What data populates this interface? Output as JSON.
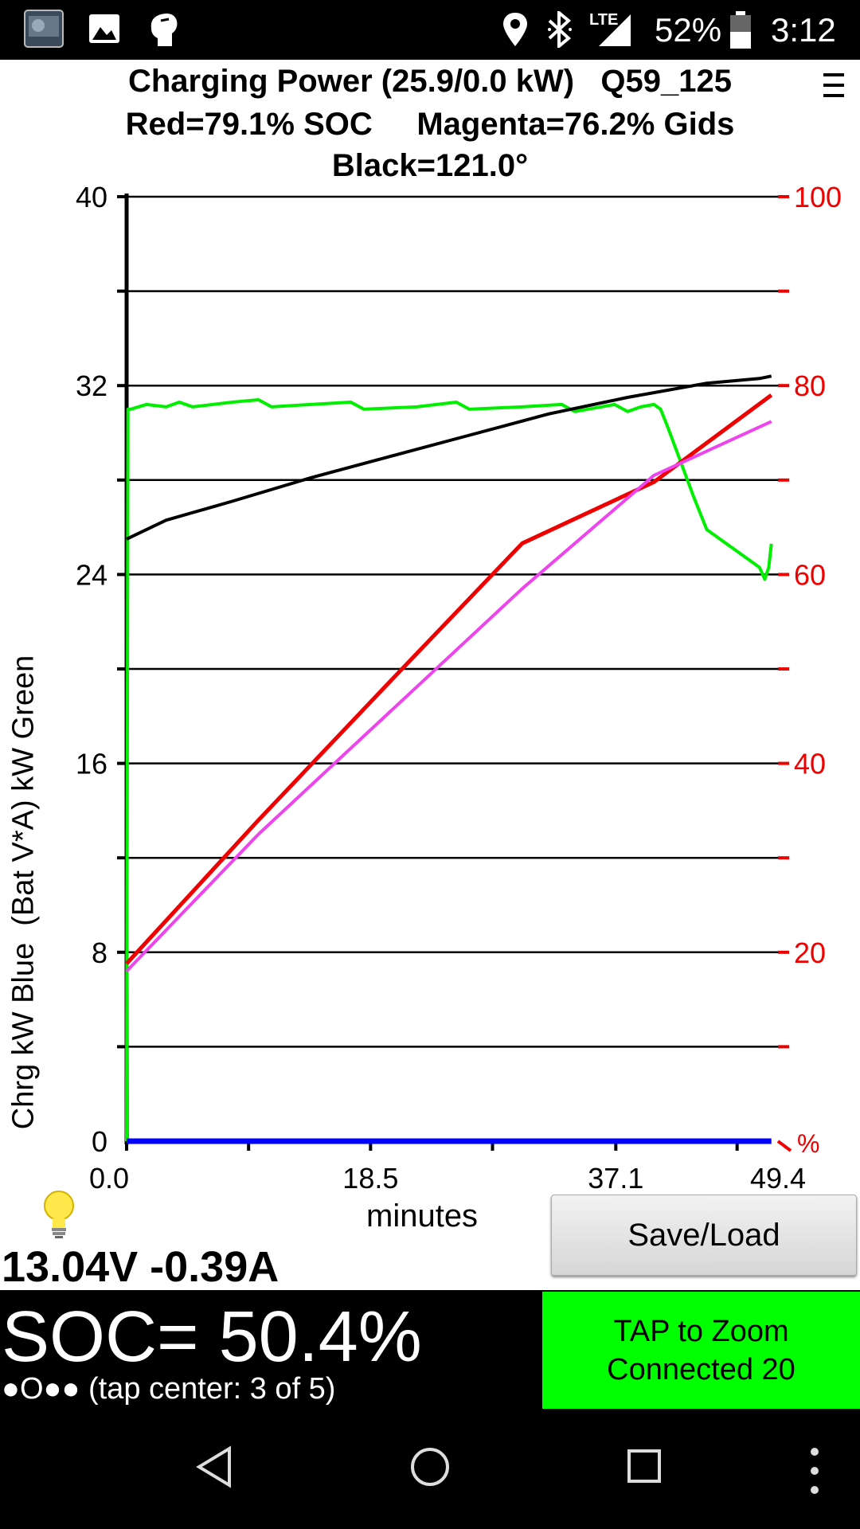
{
  "status_bar": {
    "icons": [
      "app-thumbnail-icon",
      "image-icon",
      "hand-icon",
      "location-icon",
      "bluetooth-icon",
      "lte-signal-icon",
      "battery-icon"
    ],
    "lte": "LTE",
    "battery": "52%",
    "time": "3:12"
  },
  "header": {
    "line1": "Charging Power (25.9/0.0 kW)   Q59_125",
    "line2": "Red=79.1% SOC     Magenta=76.2% Gids",
    "line3": "Black=121.0°"
  },
  "chart_data": {
    "type": "line",
    "ylabel": "Chrg kW Blue  (Bat V*A) kW Green",
    "xlabel": "minutes",
    "xlim": [
      0,
      49.4
    ],
    "ylim_left": [
      0,
      40
    ],
    "ylim_right": [
      0,
      100
    ],
    "right_unit": "%",
    "left_ticks": [
      "40",
      "32",
      "24",
      "16",
      "8",
      "0"
    ],
    "right_ticks": [
      "100",
      "80",
      "60",
      "40",
      "20"
    ],
    "x_ticks": [
      "0.0",
      "18.5",
      "37.1",
      "49.4"
    ],
    "grid": true,
    "series": [
      {
        "color": "#00ee00",
        "axis": "left",
        "points": [
          [
            0,
            0
          ],
          [
            0.1,
            31.0
          ],
          [
            0.3,
            31.0
          ],
          [
            1.5,
            31.2
          ],
          [
            3,
            31.1
          ],
          [
            4,
            31.3
          ],
          [
            5,
            31.1
          ],
          [
            8,
            31.3
          ],
          [
            10,
            31.4
          ],
          [
            11,
            31.1
          ],
          [
            14,
            31.2
          ],
          [
            17,
            31.3
          ],
          [
            18,
            31.0
          ],
          [
            22,
            31.1
          ],
          [
            25,
            31.3
          ],
          [
            26,
            31.0
          ],
          [
            30,
            31.1
          ],
          [
            33,
            31.2
          ],
          [
            34,
            30.9
          ],
          [
            37,
            31.2
          ],
          [
            38,
            30.9
          ],
          [
            39,
            31.1
          ],
          [
            40,
            31.2
          ],
          [
            40.5,
            31.0
          ],
          [
            41,
            30.3
          ],
          [
            42,
            28.8
          ],
          [
            43,
            27.3
          ],
          [
            44,
            25.9
          ],
          [
            45,
            25.5
          ],
          [
            46,
            25.1
          ],
          [
            47,
            24.7
          ],
          [
            48,
            24.3
          ],
          [
            48.4,
            23.8
          ],
          [
            48.7,
            24.3
          ],
          [
            48.9,
            25.3
          ]
        ]
      },
      {
        "color": "#000000",
        "axis": "left",
        "points": [
          [
            0,
            25.5
          ],
          [
            3,
            26.3
          ],
          [
            8,
            27.1
          ],
          [
            14,
            28.1
          ],
          [
            20,
            29.0
          ],
          [
            26,
            29.9
          ],
          [
            32,
            30.8
          ],
          [
            38,
            31.5
          ],
          [
            44,
            32.1
          ],
          [
            48,
            32.3
          ],
          [
            48.9,
            32.4
          ]
        ]
      },
      {
        "color": "#ee0000",
        "axis": "right",
        "points": [
          [
            0,
            18.8
          ],
          [
            10,
            34.0
          ],
          [
            20,
            48.7
          ],
          [
            30,
            63.3
          ],
          [
            40,
            69.8
          ],
          [
            48.9,
            79.0
          ]
        ]
      },
      {
        "color": "#ee44ee",
        "axis": "right",
        "points": [
          [
            0,
            18.0
          ],
          [
            10,
            32.5
          ],
          [
            20,
            45.5
          ],
          [
            30,
            58.5
          ],
          [
            40,
            70.5
          ],
          [
            48.9,
            76.2
          ]
        ]
      },
      {
        "color": "#0000ff",
        "axis": "left",
        "points": [
          [
            0,
            0
          ],
          [
            48.9,
            0
          ]
        ]
      }
    ]
  },
  "controls": {
    "bulb_icon": "lightbulb-icon",
    "voltage_current": "13.04V -0.39A",
    "save_load": "Save/Load",
    "soc": "SOC= 50.4%",
    "screen_dots": "●O●● (tap center: 3 of 5)",
    "zoom_line1": "TAP to Zoom",
    "zoom_line2": "Connected 20"
  },
  "nav_bar": {
    "icons": [
      "back-icon",
      "home-icon",
      "recents-icon",
      "overflow-menu-icon"
    ]
  }
}
